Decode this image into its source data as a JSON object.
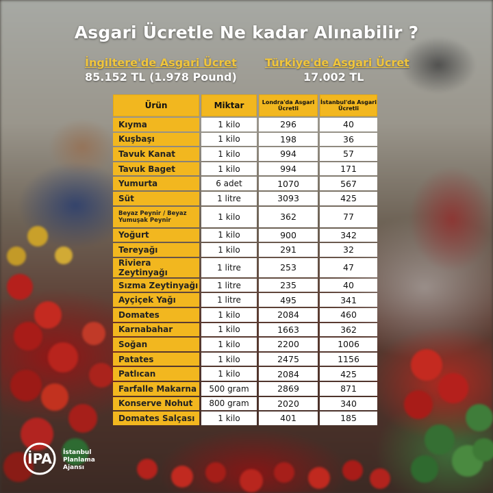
{
  "title": "Asgari Ücretle Ne kadar Alınabilir ?",
  "uk": {
    "label": "İngiltere'de Asgari  Ücret",
    "value": "85.152 TL (1.978 Pound)"
  },
  "tr": {
    "label": "Türkiye'de Asgari Ücret",
    "value": "17.002 TL"
  },
  "table": {
    "headers": [
      "Ürün",
      "Miktar",
      "Londra'da Asgari Ücretli",
      "İstanbul'da Asgari Ücretli"
    ],
    "rows": [
      [
        "Kıyma",
        "1 kilo",
        "296",
        "40"
      ],
      [
        "Kuşbaşı",
        "1 kilo",
        "198",
        "36"
      ],
      [
        "Tavuk Kanat",
        "1 kilo",
        "994",
        "57"
      ],
      [
        "Tavuk Baget",
        "1 kilo",
        "994",
        "171"
      ],
      [
        "Yumurta",
        "6 adet",
        "1070",
        "567"
      ],
      [
        "Süt",
        "1 litre",
        "3093",
        "425"
      ],
      [
        "Beyaz Peynir / Beyaz Yumuşak Peynir",
        "1 kilo",
        "362",
        "77"
      ],
      [
        "Yoğurt",
        "1 kilo",
        "900",
        "342"
      ],
      [
        "Tereyağı",
        "1 kilo",
        "291",
        "32"
      ],
      [
        "Riviera Zeytinyağı",
        "1 litre",
        "253",
        "47"
      ],
      [
        "Sızma Zeytinyağı",
        "1 litre",
        "235",
        "40"
      ],
      [
        "Ayçiçek Yağı",
        "1 litre",
        "495",
        "341"
      ],
      [
        "Domates",
        "1 kilo",
        "2084",
        "460"
      ],
      [
        "Karnabahar",
        "1 kilo",
        "1663",
        "362"
      ],
      [
        "Soğan",
        "1 kilo",
        "2200",
        "1006"
      ],
      [
        "Patates",
        "1 kilo",
        "2475",
        "1156"
      ],
      [
        "Patlıcan",
        "1 kilo",
        "2084",
        "425"
      ],
      [
        "Farfalle Makarna",
        "500 gram",
        "2869",
        "871"
      ],
      [
        "Konserve Nohut",
        "800 gram",
        "2020",
        "340"
      ],
      [
        "Domates Salçası",
        "1 kilo",
        "401",
        "185"
      ]
    ]
  },
  "logo": {
    "mark": "İPA",
    "line1": "İstanbul",
    "line2": "Planlama",
    "line3": "Ajansı"
  },
  "colors": {
    "accent": "#f2b71f",
    "wage_label": "#f0c53c"
  }
}
